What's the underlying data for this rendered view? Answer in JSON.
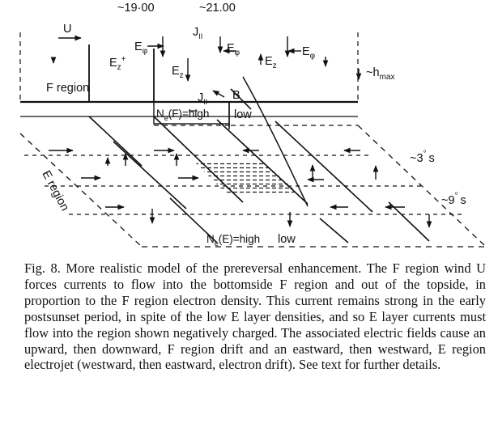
{
  "diagram": {
    "labels": {
      "time_1900": "~19·00",
      "time_2100": "~21.00",
      "u": "U",
      "e_z_plus": "E",
      "e_z_plus_sub": "z",
      "e_z_plus_sup": "+",
      "e_phi_1": "E",
      "e_phi_1_sub": "φ",
      "e_z_1": "E",
      "e_z_1_sub": "z",
      "j_par_1": "J",
      "j_par_1_sub": "II",
      "e_phi_2": "E",
      "e_phi_2_sub": "φ",
      "e_z_2": "E",
      "e_z_2_sub": "z",
      "e_phi_3": "E",
      "e_phi_3_sub": "φ",
      "h_max": "~h",
      "h_max_sub": "max",
      "f_region": "F region",
      "j_par_2": "J",
      "j_par_2_sub": "II",
      "b": "B",
      "ne_f_high": "N",
      "ne_f_high_sub": "e",
      "ne_f_high_rest": "(F)=high",
      "low_f": "low",
      "lat_3": "~3",
      "lat_3_sup": "°",
      "lat_3_s": "s",
      "lat_9": "~9",
      "lat_9_sup": "°",
      "lat_9_s": "s",
      "e_region": "E region",
      "ne_e_high": "N",
      "ne_e_high_sub": "e",
      "ne_e_high_rest": "(E)=high",
      "low_e": "low"
    }
  },
  "caption": {
    "text": "Fig. 8.  More realistic model of the prereversal enhancement. The F region wind U forces currents to flow into the bottomside F region and out of the topside, in proportion to the F region electron density. This current remains strong in the early postsunset period, in spite of the low E layer densities, and so E layer currents must flow into the region shown negatively charged. The associated electric fields cause an upward, then downward, F region drift and an eastward, then westward, E region electrojet (westward, then eastward, electron drift). See text for further details."
  }
}
